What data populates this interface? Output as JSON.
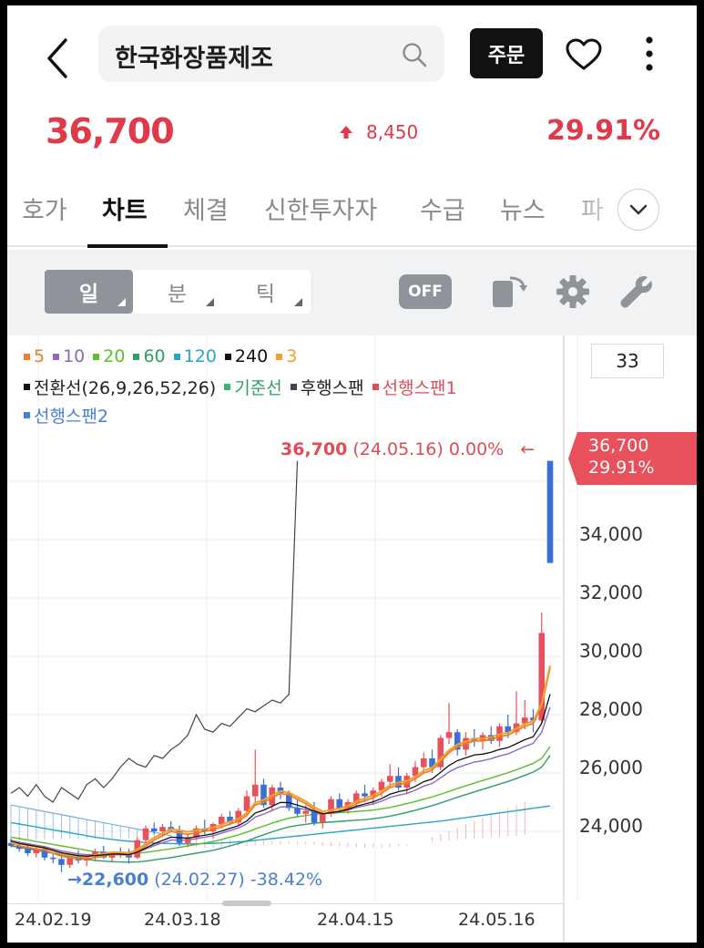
{
  "header": {
    "search_query": "한국화장품제조",
    "order_label": "주문"
  },
  "quote": {
    "price": "36,700",
    "change": "8,450",
    "change_pct": "29.91%",
    "direction": "up",
    "up_color": "#e03a4a"
  },
  "tabs": [
    {
      "label": "호가",
      "active": false
    },
    {
      "label": "차트",
      "active": true
    },
    {
      "label": "체결",
      "active": false
    },
    {
      "label": "신한투자자",
      "active": false
    },
    {
      "label": "수급",
      "active": false
    },
    {
      "label": "뉴스",
      "active": false
    },
    {
      "label": "파",
      "active": false
    }
  ],
  "toolbar": {
    "periods": [
      {
        "label": "일",
        "selected": true
      },
      {
        "label": "분",
        "selected": false
      },
      {
        "label": "틱",
        "selected": false
      }
    ],
    "off_label": "OFF",
    "icons": [
      "export-icon",
      "gear-icon",
      "wrench-icon"
    ]
  },
  "chart_panel": {
    "count": "33",
    "legend_row1": [
      {
        "label": "5",
        "color": "#f07c2b"
      },
      {
        "label": "10",
        "color": "#8b67c9"
      },
      {
        "label": "20",
        "color": "#5cbf2a"
      },
      {
        "label": "60",
        "color": "#2e9e62"
      },
      {
        "label": "120",
        "color": "#2aa4c8"
      },
      {
        "label": "240",
        "color": "#111111"
      },
      {
        "label": "3",
        "color": "#f0a02b"
      }
    ],
    "legend_row2": [
      {
        "label": "전환선(26,9,26,52,26)",
        "color": "#111111",
        "text_color": "#222222"
      },
      {
        "label": "기준선",
        "color": "#3cb371",
        "text_color": "#2e9e62"
      },
      {
        "label": "후행스팬",
        "color": "#444444",
        "text_color": "#222222"
      },
      {
        "label": "선행스팬1",
        "color": "#e04b57",
        "text_color": "#e04b57"
      }
    ],
    "legend_row3": [
      {
        "label": "선행스팬2",
        "color": "#4a7fd0",
        "text_color": "#4a7fd0"
      }
    ],
    "last_tag": {
      "price": "36,700",
      "pct": "29.91%"
    },
    "last_annotation": {
      "price": "36,700",
      "rest": "(24.05.16) 0.00%",
      "arrow": "←"
    },
    "low_annotation": {
      "arrow": "→",
      "price": "22,600",
      "rest": "(24.02.27) -38.42%"
    }
  },
  "chart_data": {
    "type": "candlestick",
    "y_ticks": [
      "34,000",
      "32,000",
      "30,000",
      "28,000",
      "26,000",
      "24,000"
    ],
    "y_tick_values": [
      34000,
      32000,
      30000,
      28000,
      26000,
      24000
    ],
    "ylim": [
      22200,
      37800
    ],
    "x_ticks": [
      "24.02.19",
      "24.03.18",
      "24.04.15",
      "24.05.16"
    ],
    "x_tick_index": [
      0,
      20,
      40,
      64
    ],
    "candles_ohlc": [
      [
        23600,
        23750,
        23450,
        23500
      ],
      [
        23500,
        23650,
        23300,
        23400
      ],
      [
        23400,
        23550,
        23150,
        23250
      ],
      [
        23250,
        23500,
        23100,
        23400
      ],
      [
        23400,
        23500,
        23000,
        23100
      ],
      [
        23100,
        23250,
        22900,
        23050
      ],
      [
        23050,
        23300,
        22600,
        22850
      ],
      [
        22850,
        23200,
        22750,
        23100
      ],
      [
        23100,
        23350,
        22900,
        23000
      ],
      [
        23000,
        23200,
        22800,
        23150
      ],
      [
        23150,
        23400,
        23000,
        23300
      ],
      [
        23300,
        23500,
        23050,
        23100
      ],
      [
        23100,
        23300,
        22950,
        23250
      ],
      [
        23250,
        23450,
        23100,
        23200
      ],
      [
        23200,
        23400,
        22900,
        23100
      ],
      [
        23100,
        23800,
        23050,
        23700
      ],
      [
        23700,
        24200,
        23600,
        24100
      ],
      [
        24100,
        24300,
        23900,
        24000
      ],
      [
        24000,
        24250,
        23850,
        24150
      ],
      [
        24150,
        24350,
        24000,
        24050
      ],
      [
        24050,
        24200,
        23500,
        23600
      ],
      [
        23600,
        23900,
        23450,
        23800
      ],
      [
        23800,
        24200,
        23700,
        24100
      ],
      [
        24100,
        24400,
        23900,
        24000
      ],
      [
        24000,
        24300,
        23750,
        24250
      ],
      [
        24250,
        24600,
        24100,
        24500
      ],
      [
        24500,
        24700,
        24200,
        24300
      ],
      [
        24300,
        24800,
        24200,
        24700
      ],
      [
        24700,
        25400,
        24600,
        25200
      ],
      [
        25200,
        26800,
        25000,
        25600
      ],
      [
        25600,
        25800,
        24800,
        24900
      ],
      [
        24900,
        25600,
        24700,
        25500
      ],
      [
        25500,
        25700,
        25100,
        25300
      ],
      [
        25300,
        25400,
        24700,
        24800
      ],
      [
        24800,
        25100,
        24500,
        24600
      ],
      [
        24600,
        24900,
        24300,
        24700
      ],
      [
        24700,
        25000,
        24200,
        24300
      ],
      [
        24300,
        24700,
        24100,
        24600
      ],
      [
        24600,
        25200,
        24500,
        25100
      ],
      [
        25100,
        25300,
        24700,
        24800
      ],
      [
        24800,
        25100,
        24600,
        25000
      ],
      [
        25000,
        25400,
        24800,
        25300
      ],
      [
        25300,
        25600,
        25000,
        25200
      ],
      [
        25200,
        25500,
        24900,
        25400
      ],
      [
        25400,
        25800,
        25200,
        25700
      ],
      [
        25700,
        26300,
        25500,
        25900
      ],
      [
        25900,
        26200,
        25400,
        25500
      ],
      [
        25500,
        26000,
        25300,
        25900
      ],
      [
        25900,
        26400,
        25700,
        26200
      ],
      [
        26200,
        26700,
        26000,
        26500
      ],
      [
        26500,
        26800,
        26000,
        26200
      ],
      [
        26200,
        27300,
        26100,
        27200
      ],
      [
        27200,
        28400,
        27000,
        27400
      ],
      [
        27400,
        27500,
        26600,
        26800
      ],
      [
        26800,
        27400,
        26600,
        27200
      ],
      [
        27200,
        27500,
        26900,
        27100
      ],
      [
        27100,
        27400,
        26800,
        27300
      ],
      [
        27300,
        27600,
        27000,
        27100
      ],
      [
        27100,
        27700,
        26900,
        27600
      ],
      [
        27600,
        28000,
        27200,
        27400
      ],
      [
        27400,
        28800,
        27300,
        27700
      ],
      [
        27700,
        28500,
        27500,
        27900
      ],
      [
        27900,
        28200,
        27400,
        27800
      ],
      [
        27800,
        31500,
        27700,
        30800
      ],
      [
        36700,
        36700,
        33200,
        33200
      ]
    ],
    "ma5": [
      23600,
      23500,
      23450,
      23400,
      23350,
      23250,
      23150,
      23100,
      23050,
      23050,
      23100,
      23150,
      23200,
      23200,
      23180,
      23300,
      23500,
      23700,
      23850,
      24000,
      23950,
      23900,
      23950,
      24000,
      24050,
      24150,
      24250,
      24350,
      24550,
      24900,
      25000,
      25150,
      25300,
      25250,
      25100,
      24950,
      24750,
      24600,
      24650,
      24700,
      24800,
      24950,
      25050,
      25150,
      25300,
      25500,
      25600,
      25650,
      25800,
      26000,
      26100,
      26400,
      26700,
      26900,
      27000,
      27100,
      27100,
      27150,
      27250,
      27300,
      27450,
      27600,
      27700,
      28300,
      29600
    ],
    "ma20": [
      23800,
      23750,
      23700,
      23650,
      23600,
      23550,
      23500,
      23450,
      23400,
      23350,
      23300,
      23280,
      23260,
      23250,
      23240,
      23250,
      23280,
      23320,
      23360,
      23400,
      23450,
      23500,
      23550,
      23600,
      23650,
      23720,
      23800,
      23880,
      23970,
      24080,
      24180,
      24280,
      24370,
      24450,
      24500,
      24540,
      24580,
      24600,
      24620,
      24640,
      24660,
      24680,
      24700,
      24730,
      24770,
      24820,
      24880,
      24950,
      25020,
      25100,
      25180,
      25270,
      25370,
      25470,
      25560,
      25650,
      25740,
      25830,
      25920,
      26010,
      26110,
      26220,
      26330,
      26500,
      26900
    ],
    "ma60": [
      24300,
      24250,
      24200,
      24150,
      24100,
      24050,
      24000,
      23950,
      23900,
      23850,
      23800,
      23760,
      23720,
      23690,
      23660,
      23640,
      23620,
      23600,
      23590,
      23580,
      23570,
      23570,
      23570,
      23580,
      23590,
      23600,
      23620,
      23640,
      23660,
      23690,
      23720,
      23750,
      23780,
      23810,
      23840,
      23870,
      23900,
      23930,
      23960,
      23990,
      24020,
      24050,
      24080,
      24110,
      24140,
      24170,
      24200,
      24230,
      24260,
      24290,
      24320,
      24350,
      24390,
      24430,
      24470,
      24510,
      24550,
      24590,
      24630,
      24670,
      24710,
      24750,
      24790,
      24830,
      24870
    ],
    "lagging_span": [
      25300,
      25500,
      25200,
      25600,
      25200,
      25000,
      25500,
      25300,
      25100,
      25600,
      25800,
      25500,
      25800,
      26200,
      26500,
      26300,
      26200,
      26600,
      26500,
      26800,
      27000,
      27300,
      28000,
      27500,
      27400,
      27700,
      27600,
      27900,
      28200,
      28100,
      28300,
      28500,
      28400,
      28700,
      36700
    ]
  }
}
